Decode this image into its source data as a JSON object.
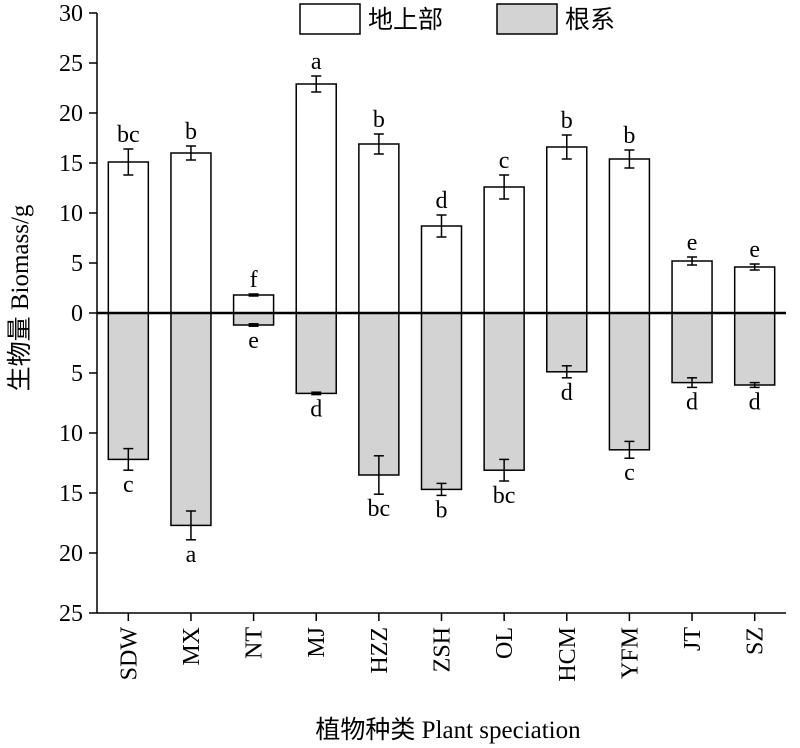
{
  "chart_data": {
    "type": "bar",
    "xlabel": "植物种类 Plant speciation",
    "ylabel": "生物量 Biomass/g",
    "categories": [
      "SDW",
      "MX",
      "NT",
      "MJ",
      "HZZ",
      "ZSH",
      "OL",
      "HCM",
      "YFM",
      "JT",
      "SZ"
    ],
    "y_ticks_upper": [
      "30",
      "25",
      "20",
      "15",
      "10",
      "5",
      "0"
    ],
    "y_ticks_lower": [
      "5",
      "10",
      "15",
      "20",
      "25"
    ],
    "ylim_upper": [
      0,
      30
    ],
    "ylim_lower": [
      0,
      25
    ],
    "legend_position": "top-center",
    "grid": false,
    "series": [
      {
        "name": "地上部",
        "direction": "up",
        "color": "#ffffff",
        "values": [
          15.1,
          16.0,
          1.8,
          22.9,
          16.9,
          8.7,
          12.6,
          16.6,
          15.4,
          5.2,
          4.6
        ],
        "errors": [
          1.3,
          0.7,
          0.1,
          0.8,
          1.0,
          1.1,
          1.2,
          1.2,
          0.9,
          0.4,
          0.3
        ],
        "labels": [
          "bc",
          "b",
          "f",
          "a",
          "b",
          "d",
          "c",
          "b",
          "b",
          "e",
          "e"
        ]
      },
      {
        "name": "根系",
        "direction": "down",
        "color": "#d3d3d3",
        "values": [
          12.2,
          17.7,
          1.0,
          6.7,
          13.5,
          14.7,
          13.1,
          4.9,
          11.4,
          5.8,
          6.0
        ],
        "errors": [
          0.9,
          1.2,
          0.1,
          0.1,
          1.6,
          0.5,
          0.9,
          0.5,
          0.7,
          0.4,
          0.2
        ],
        "labels": [
          "c",
          "a",
          "e",
          "d",
          "bc",
          "b",
          "bc",
          "d",
          "c",
          "d",
          "d"
        ]
      }
    ]
  }
}
